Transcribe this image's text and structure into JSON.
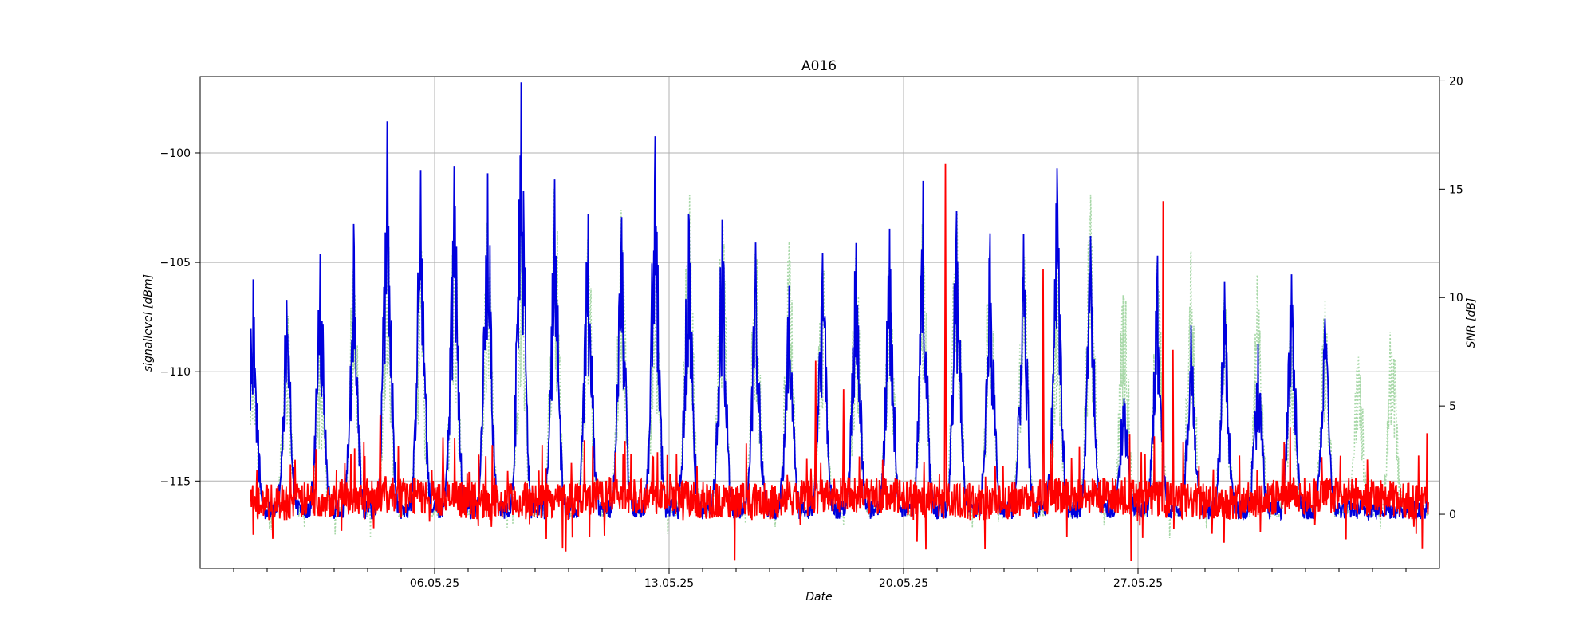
{
  "chart_data": {
    "type": "line",
    "title": "A016",
    "xlabel": "Date",
    "ylabel": "signallevel [dBm]",
    "y2label": "SNR [dB]",
    "x_range": [
      "2025-04-29",
      "2025-06-05"
    ],
    "x_ticks": [
      {
        "date": "2025-05-06",
        "label": "06.05.25"
      },
      {
        "date": "2025-05-13",
        "label": "13.05.25"
      },
      {
        "date": "2025-05-20",
        "label": "20.05.25"
      },
      {
        "date": "2025-05-27",
        "label": "27.05.25"
      }
    ],
    "ylim": [
      -119,
      -96.5
    ],
    "y_ticks": [
      -100,
      -105,
      -110,
      -115
    ],
    "y_tick_labels": [
      "−100",
      "−105",
      "−110",
      "−115"
    ],
    "y2lim": [
      -2.5,
      20.2
    ],
    "y2_ticks": [
      0,
      5,
      10,
      15,
      20
    ],
    "y2_tick_labels": [
      "0",
      "5",
      "10",
      "15",
      "20"
    ],
    "grid": true,
    "legend": "none",
    "data_start": "2025-04-30T12:00",
    "data_end": "2025-06-04T16:00",
    "series": [
      {
        "axis": "right",
        "color": "#a8d8a8",
        "style": "dotted",
        "peaks": [
          {
            "date": "2025-04-30T14:00",
            "value": 9
          },
          {
            "date": "2025-05-01T14:00",
            "value": 10
          },
          {
            "date": "2025-05-02T14:00",
            "value": 8
          },
          {
            "date": "2025-05-03T14:00",
            "value": 12
          },
          {
            "date": "2025-05-04T14:00",
            "value": 15
          },
          {
            "date": "2025-05-05T14:00",
            "value": 13
          },
          {
            "date": "2025-05-06T14:00",
            "value": 14
          },
          {
            "date": "2025-05-07T14:00",
            "value": 15
          },
          {
            "date": "2025-05-08T14:00",
            "value": 14
          },
          {
            "date": "2025-05-09T14:00",
            "value": 17
          },
          {
            "date": "2025-05-10T14:00",
            "value": 14
          },
          {
            "date": "2025-05-11T14:00",
            "value": 14
          },
          {
            "date": "2025-05-12T14:00",
            "value": 13
          },
          {
            "date": "2025-05-13T14:00",
            "value": 16
          },
          {
            "date": "2025-05-14T14:00",
            "value": 14
          },
          {
            "date": "2025-05-15T14:00",
            "value": 13
          },
          {
            "date": "2025-05-16T14:00",
            "value": 13
          },
          {
            "date": "2025-05-17T14:00",
            "value": 12
          },
          {
            "date": "2025-05-18T14:00",
            "value": 12
          },
          {
            "date": "2025-05-19T14:00",
            "value": 12
          },
          {
            "date": "2025-05-20T14:00",
            "value": 14
          },
          {
            "date": "2025-05-21T14:00",
            "value": 15
          },
          {
            "date": "2025-05-22T14:00",
            "value": 13
          },
          {
            "date": "2025-05-23T14:00",
            "value": 13
          },
          {
            "date": "2025-05-24T14:00",
            "value": 12
          },
          {
            "date": "2025-05-25T14:00",
            "value": 15
          },
          {
            "date": "2025-05-26T14:00",
            "value": 12
          },
          {
            "date": "2025-05-27T14:00",
            "value": 12
          },
          {
            "date": "2025-05-28T14:00",
            "value": 12
          },
          {
            "date": "2025-05-29T14:00",
            "value": 10
          },
          {
            "date": "2025-05-30T14:00",
            "value": 11
          },
          {
            "date": "2025-05-31T14:00",
            "value": 9
          },
          {
            "date": "2025-06-01T14:00",
            "value": 10
          },
          {
            "date": "2025-06-02T14:00",
            "value": 8
          },
          {
            "date": "2025-06-03T14:00",
            "value": 10
          }
        ]
      },
      {
        "axis": "left",
        "color": "#0000dd",
        "style": "solid",
        "baseline": -116.3,
        "peaks": [
          {
            "date": "2025-04-30T14:00",
            "value": -105.6
          },
          {
            "date": "2025-05-01T14:00",
            "value": -107.0
          },
          {
            "date": "2025-05-02T14:00",
            "value": -105.0
          },
          {
            "date": "2025-05-03T14:00",
            "value": -103.5
          },
          {
            "date": "2025-05-04T14:00",
            "value": -98.9
          },
          {
            "date": "2025-05-05T14:00",
            "value": -100.7
          },
          {
            "date": "2025-05-06T14:00",
            "value": -101.0
          },
          {
            "date": "2025-05-07T14:00",
            "value": -101.2
          },
          {
            "date": "2025-05-08T14:00",
            "value": -97.2
          },
          {
            "date": "2025-05-09T14:00",
            "value": -100.8
          },
          {
            "date": "2025-05-10T14:00",
            "value": -102.5
          },
          {
            "date": "2025-05-11T14:00",
            "value": -103.1
          },
          {
            "date": "2025-05-12T14:00",
            "value": -99.4
          },
          {
            "date": "2025-05-13T14:00",
            "value": -102.4
          },
          {
            "date": "2025-05-14T14:00",
            "value": -103.1
          },
          {
            "date": "2025-05-15T14:00",
            "value": -104.0
          },
          {
            "date": "2025-05-16T14:00",
            "value": -106.0
          },
          {
            "date": "2025-05-17T14:00",
            "value": -104.5
          },
          {
            "date": "2025-05-18T14:00",
            "value": -104.1
          },
          {
            "date": "2025-05-19T14:00",
            "value": -103.9
          },
          {
            "date": "2025-05-20T14:00",
            "value": -101.6
          },
          {
            "date": "2025-05-21T14:00",
            "value": -102.8
          },
          {
            "date": "2025-05-22T14:00",
            "value": -103.8
          },
          {
            "date": "2025-05-23T14:00",
            "value": -103.8
          },
          {
            "date": "2025-05-24T14:00",
            "value": -100.4
          },
          {
            "date": "2025-05-25T14:00",
            "value": -103.5
          },
          {
            "date": "2025-05-26T14:00",
            "value": -110.8
          },
          {
            "date": "2025-05-27T14:00",
            "value": -104.6
          },
          {
            "date": "2025-05-28T14:00",
            "value": -107.6
          },
          {
            "date": "2025-05-29T14:00",
            "value": -106.0
          },
          {
            "date": "2025-05-30T14:00",
            "value": -108.7
          },
          {
            "date": "2025-05-31T14:00",
            "value": -105.6
          },
          {
            "date": "2025-06-01T14:00",
            "value": -107.4
          }
        ]
      },
      {
        "axis": "left",
        "color": "#ff0000",
        "style": "solid",
        "baseline": -115.8,
        "spikes": [
          {
            "date": "2025-05-04T09:00",
            "value": -112.0
          },
          {
            "date": "2025-05-06T06:00",
            "value": -113.0
          },
          {
            "date": "2025-05-17T09:00",
            "value": -109.5
          },
          {
            "date": "2025-05-18T05:00",
            "value": -110.8
          },
          {
            "date": "2025-05-21T06:00",
            "value": -100.5
          },
          {
            "date": "2025-05-24T04:00",
            "value": -105.3
          },
          {
            "date": "2025-05-27T18:00",
            "value": -102.2
          },
          {
            "date": "2025-05-28T01:00",
            "value": -109.0
          }
        ]
      }
    ]
  }
}
